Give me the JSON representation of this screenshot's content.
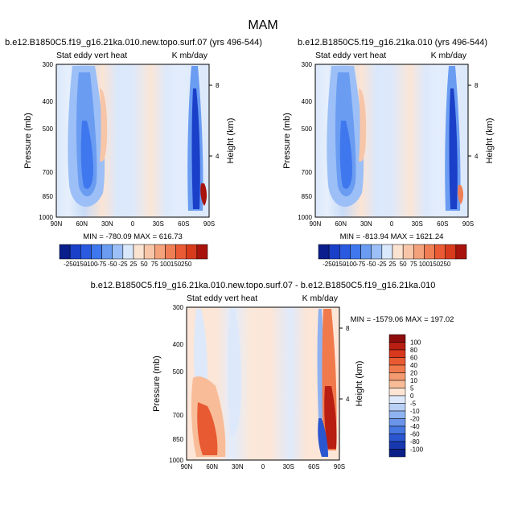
{
  "figure": {
    "season": "MAM"
  },
  "chart_data": [
    {
      "type": "heatmap",
      "title": "b.e12.B1850C5.f19_g16.21ka.010.new.topo.surf.07 (yrs 496-544)",
      "subtitle_left": "Stat eddy vert heat",
      "subtitle_right": "K mb/day",
      "ylabel": "Pressure (mb)",
      "ylabel_right": "Height (km)",
      "x_ticks": [
        "90N",
        "60N",
        "30N",
        "0",
        "30S",
        "60S",
        "90S"
      ],
      "y_ticks": [
        "300",
        "400",
        "500",
        "700",
        "850",
        "1000"
      ],
      "y_ticks_right": [
        "8",
        "4"
      ],
      "stats": "MIN = -780.09  MAX = 616.73",
      "colorbar_labels": [
        "-250",
        "-150",
        "-100",
        "-75",
        "-50",
        "-25",
        "25",
        "50",
        "75",
        "100",
        "150",
        "250"
      ],
      "colorbar_colors": [
        "#0a1e8c",
        "#1a3fc8",
        "#2a5ae0",
        "#3f78ee",
        "#6a9cf2",
        "#9bbff6",
        "#d9e8fb",
        "#fbe3d2",
        "#f7c5a8",
        "#f4a27c",
        "#f07e55",
        "#ea5a34",
        "#d83a1c",
        "#a8140c"
      ]
    },
    {
      "type": "heatmap",
      "title": "b.e12.B1850C5.f19_g16.21ka.010 (yrs 496-544)",
      "subtitle_left": "Stat eddy vert heat",
      "subtitle_right": "K mb/day",
      "ylabel": "Pressure (mb)",
      "ylabel_right": "Height (km)",
      "x_ticks": [
        "90N",
        "60N",
        "30N",
        "0",
        "30S",
        "60S",
        "90S"
      ],
      "y_ticks": [
        "300",
        "400",
        "500",
        "700",
        "850",
        "1000"
      ],
      "y_ticks_right": [
        "8",
        "4"
      ],
      "stats": "MIN = -813.94  MAX = 1621.24",
      "colorbar_labels": [
        "-250",
        "-150",
        "-100",
        "-75",
        "-50",
        "-25",
        "25",
        "50",
        "75",
        "100",
        "150",
        "250"
      ],
      "colorbar_colors": [
        "#0a1e8c",
        "#1a3fc8",
        "#2a5ae0",
        "#3f78ee",
        "#6a9cf2",
        "#9bbff6",
        "#d9e8fb",
        "#fbe3d2",
        "#f7c5a8",
        "#f4a27c",
        "#f07e55",
        "#ea5a34",
        "#d83a1c",
        "#a8140c"
      ]
    },
    {
      "type": "heatmap",
      "title": "b.e12.B1850C5.f19_g16.21ka.010.new.topo.surf.07 - b.e12.B1850C5.f19_g16.21ka.010",
      "subtitle_left": "Stat eddy vert heat",
      "subtitle_right": "K mb/day",
      "ylabel": "Pressure (mb)",
      "ylabel_right": "Height (km)",
      "x_ticks": [
        "90N",
        "60N",
        "30N",
        "0",
        "30S",
        "60S",
        "90S"
      ],
      "y_ticks": [
        "300",
        "400",
        "500",
        "700",
        "850",
        "1000"
      ],
      "y_ticks_right": [
        "8",
        "4"
      ],
      "stats": "MIN = -1579.06  MAX = 197.02",
      "colorbar_labels": [
        "100",
        "80",
        "60",
        "40",
        "20",
        "10",
        "5",
        "0",
        "-5",
        "-10",
        "-20",
        "-40",
        "-60",
        "-80",
        "-100"
      ],
      "colorbar_colors": [
        "#8e0c0c",
        "#b81e12",
        "#d8381c",
        "#e85a32",
        "#f07a4c",
        "#f49a70",
        "#f8bc98",
        "#fde5d4",
        "#dde9fa",
        "#b8d0f6",
        "#8fb2f0",
        "#6a94ea",
        "#4676e0",
        "#2a56d0",
        "#1838b0",
        "#0c1e88"
      ]
    }
  ]
}
